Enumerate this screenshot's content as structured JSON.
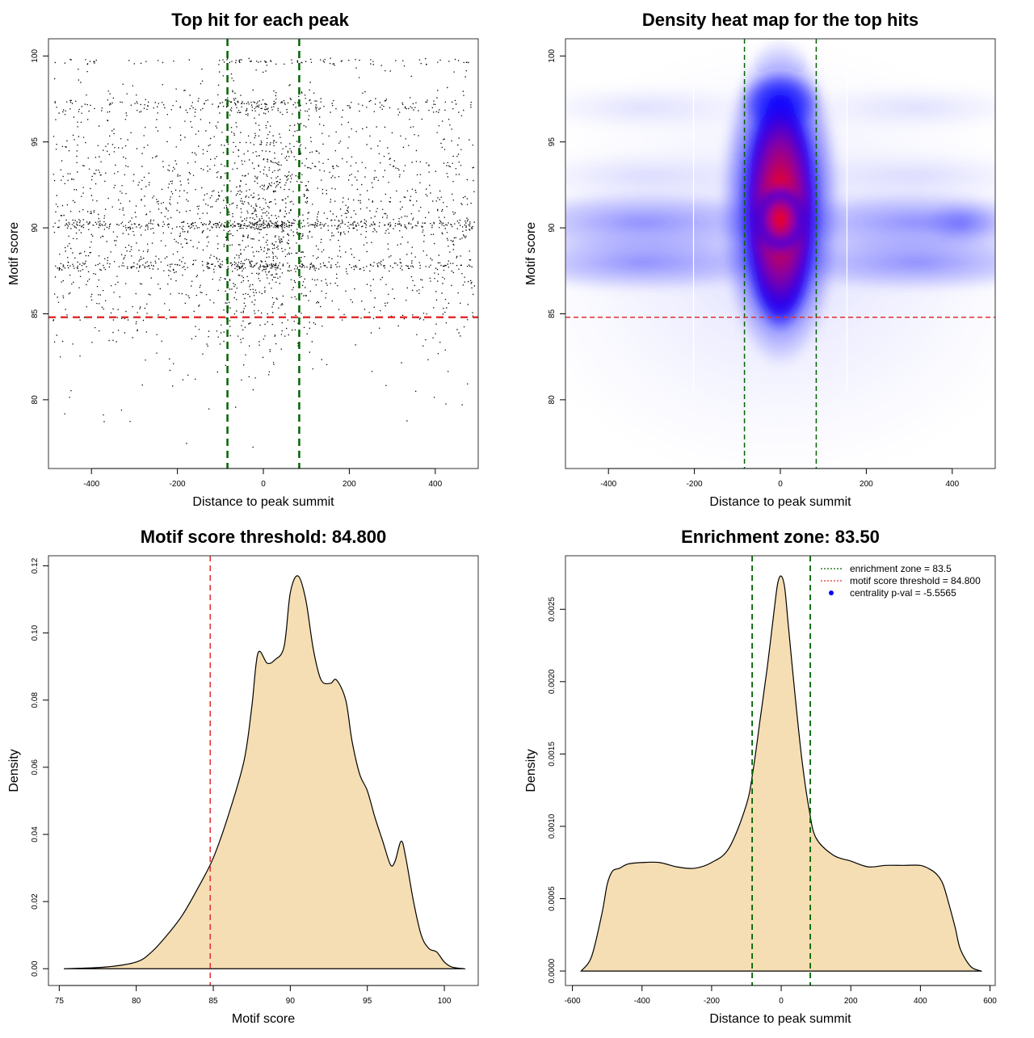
{
  "colors": {
    "threshold": "#e03030",
    "zone": "#006400",
    "fill": "#f5deb3",
    "point": "#000000",
    "centrality": "#0000ff",
    "heat_low": "#ffffff",
    "heat_mid": "#0000ff",
    "heat_high": "#ff0000"
  },
  "chart_data": [
    {
      "type": "scatter",
      "title": "Top hit for each peak",
      "xlabel": "Distance to peak summit",
      "ylabel": "Motif score",
      "xlim": [
        -500,
        500
      ],
      "ylim": [
        76,
        101
      ],
      "xticks": [
        -400,
        -200,
        0,
        200,
        400
      ],
      "yticks": [
        80,
        85,
        90,
        95,
        100
      ],
      "threshold": 84.8,
      "zone": [
        -83.5,
        83.5
      ],
      "points_desc": "approx 12000 points, x uniform on [-500,500] with extra concentration near 0, y mostly between 82 and 100 with bands at ~90.2, ~87.8, ~97.3"
    },
    {
      "type": "heatmap",
      "title": "Density heat map for the top hits",
      "xlabel": "Distance to peak summit",
      "ylabel": "Motif score",
      "xlim": [
        -500,
        500
      ],
      "ylim": [
        76,
        101
      ],
      "xticks": [
        -400,
        -200,
        0,
        200,
        400
      ],
      "yticks": [
        80,
        85,
        90,
        95,
        100
      ],
      "threshold": 84.8,
      "zone": [
        -83.5,
        83.5
      ],
      "peak": {
        "x": 0,
        "y": 90.5
      }
    },
    {
      "type": "area",
      "title": "Motif score threshold: 84.800",
      "xlabel": "Motif score",
      "ylabel": "Density",
      "xlim": [
        74.3,
        102.2
      ],
      "ylim": [
        -0.005,
        0.123
      ],
      "xticks": [
        75,
        80,
        85,
        90,
        95,
        100
      ],
      "yticks": [
        0.0,
        0.02,
        0.04,
        0.06,
        0.08,
        0.1,
        0.12
      ],
      "ytick_labels": [
        "0.00",
        "0.02",
        "0.04",
        "0.06",
        "0.08",
        "0.10",
        "0.12"
      ],
      "threshold": 84.8,
      "x": [
        75.3,
        78,
        80,
        81,
        82,
        83,
        84,
        85,
        86,
        87,
        87.5,
        87.9,
        88.5,
        89,
        89.6,
        90,
        90.5,
        91,
        91.5,
        92,
        92.6,
        93,
        93.6,
        94,
        94.5,
        95,
        95.5,
        96,
        96.5,
        96.8,
        97.2,
        97.5,
        98,
        98.5,
        99,
        99.5,
        100,
        100.5,
        101.3
      ],
      "y": [
        0.0,
        0.0005,
        0.002,
        0.005,
        0.01,
        0.016,
        0.024,
        0.033,
        0.046,
        0.062,
        0.078,
        0.094,
        0.091,
        0.092,
        0.096,
        0.112,
        0.117,
        0.11,
        0.095,
        0.086,
        0.085,
        0.086,
        0.08,
        0.068,
        0.058,
        0.053,
        0.045,
        0.038,
        0.031,
        0.032,
        0.038,
        0.033,
        0.02,
        0.01,
        0.006,
        0.005,
        0.002,
        0.0005,
        0.0
      ]
    },
    {
      "type": "area",
      "title": "Enrichment zone: 83.50",
      "xlabel": "Distance to peak summit",
      "ylabel": "Density",
      "xlim": [
        -620,
        615
      ],
      "ylim": [
        -0.0001,
        0.00287
      ],
      "xticks": [
        -600,
        -400,
        -200,
        0,
        200,
        400,
        600
      ],
      "yticks": [
        0.0,
        0.0005,
        0.001,
        0.0015,
        0.002,
        0.0025
      ],
      "ytick_labels": [
        "0.0000",
        "0.0005",
        "0.0010",
        "0.0015",
        "0.0020",
        "0.0025"
      ],
      "zone": [
        -83.5,
        83.5
      ],
      "x": [
        -575,
        -545,
        -515,
        -500,
        -485,
        -465,
        -440,
        -400,
        -350,
        -300,
        -250,
        -200,
        -150,
        -100,
        -80,
        -60,
        -40,
        -20,
        -10,
        0,
        10,
        20,
        40,
        60,
        80,
        100,
        150,
        200,
        250,
        300,
        350,
        400,
        430,
        450,
        465,
        480,
        500,
        515,
        545,
        575
      ],
      "y": [
        0.0,
        0.0001,
        0.0004,
        0.0006,
        0.00069,
        0.00071,
        0.00074,
        0.00075,
        0.00075,
        0.00072,
        0.00071,
        0.00075,
        0.00085,
        0.00115,
        0.0014,
        0.00175,
        0.0021,
        0.0025,
        0.00268,
        0.00273,
        0.00265,
        0.0024,
        0.0019,
        0.00145,
        0.00112,
        0.00092,
        0.0008,
        0.00076,
        0.00072,
        0.00073,
        0.00073,
        0.00073,
        0.0007,
        0.00066,
        0.0006,
        0.00048,
        0.0003,
        0.00015,
        3e-05,
        0.0
      ],
      "legend": [
        {
          "label": "enrichment zone = 83.5",
          "style": "zone-line"
        },
        {
          "label": "motif score threshold = 84.800",
          "style": "threshold-line"
        },
        {
          "label": "centrality p-val = -5.5565",
          "style": "point"
        }
      ],
      "legend_position": "top-right"
    }
  ]
}
